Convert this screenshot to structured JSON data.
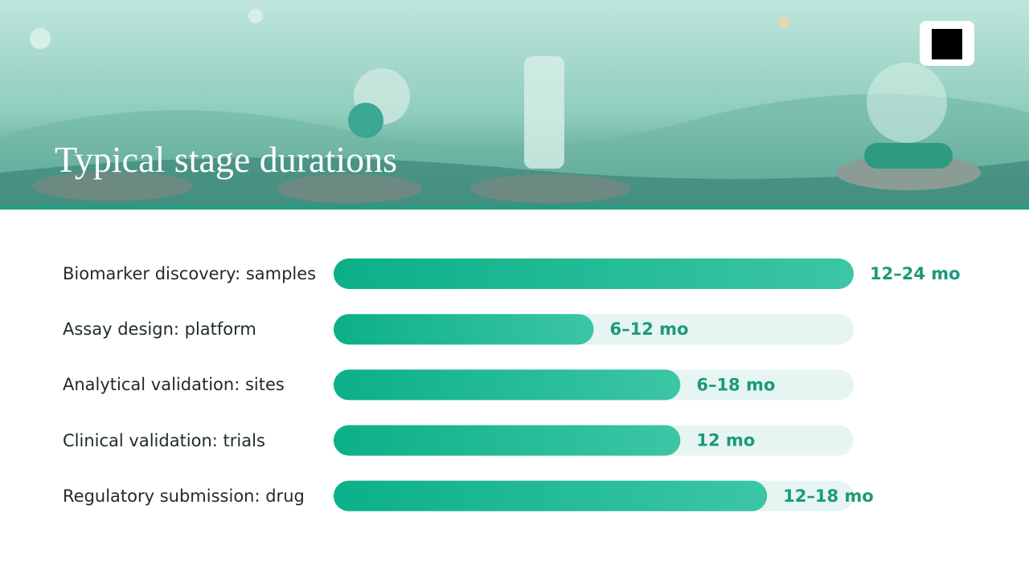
{
  "chart_data": {
    "type": "bar",
    "orientation": "horizontal",
    "title": "Typical stage durations",
    "categories": [
      "Biomarker discovery: samples",
      "Assay design: platform",
      "Analytical validation: sites",
      "Clinical validation: trials",
      "Regulatory submission: drug"
    ],
    "values": [
      18,
      9,
      12,
      12,
      15
    ],
    "value_labels": [
      "12–24 mo",
      "6–12 mo",
      "6–18 mo",
      "12 mo",
      "12–18 mo"
    ],
    "xlim": [
      0,
      18
    ],
    "color": "#12b48b",
    "track_color": "#e6f5f1"
  }
}
